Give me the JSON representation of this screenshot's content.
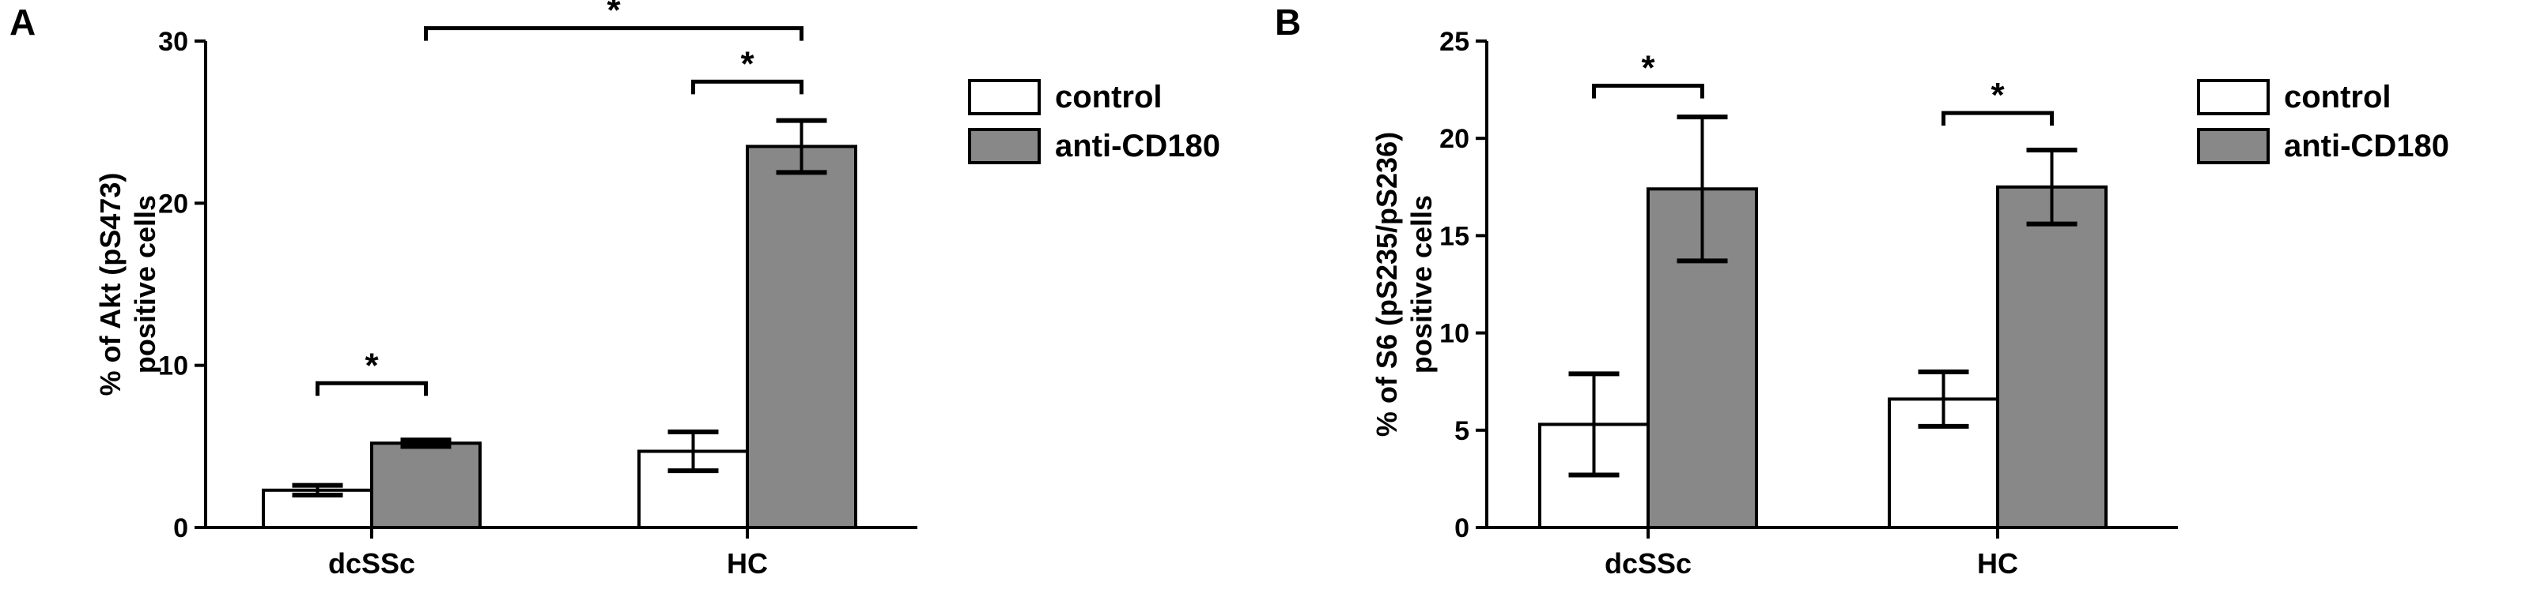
{
  "chart_data": [
    {
      "panel_label": "A",
      "type": "bar",
      "categories": [
        "dcSSc",
        "HC"
      ],
      "series": [
        {
          "name": "control",
          "values": [
            2.3,
            4.7
          ],
          "errors": [
            0.3,
            1.2
          ]
        },
        {
          "name": "anti-CD180",
          "values": [
            5.2,
            23.5
          ],
          "errors": [
            0.2,
            1.6
          ]
        }
      ],
      "ylabel": [
        "% of Akt (pS473)",
        "positive cells"
      ],
      "ylim": [
        0,
        30
      ],
      "yticks": [
        "0",
        "10",
        "20",
        "30"
      ],
      "legend_position": "top-right",
      "colors": {
        "control": "#ffffff",
        "anti-CD180": "#888888"
      },
      "significance": [
        {
          "category": 0,
          "from_series": 0,
          "to_series": 1,
          "level": 8.9,
          "label": "*"
        },
        {
          "category": 1,
          "from_series": 0,
          "to_series": 1,
          "level": 27.5,
          "label": "*"
        },
        {
          "from": [
            0,
            1
          ],
          "to": [
            1,
            1
          ],
          "level": 30.8,
          "label": "*"
        }
      ]
    },
    {
      "panel_label": "B",
      "type": "bar",
      "categories": [
        "dcSSc",
        "HC"
      ],
      "series": [
        {
          "name": "control",
          "values": [
            5.3,
            6.6
          ],
          "errors": [
            2.6,
            1.4
          ]
        },
        {
          "name": "anti-CD180",
          "values": [
            17.4,
            17.5
          ],
          "errors": [
            3.7,
            1.9
          ]
        }
      ],
      "ylabel": [
        "% of S6 (pS235/pS236)",
        "positive cells"
      ],
      "ylim": [
        0,
        25
      ],
      "yticks": [
        "0",
        "5",
        "10",
        "15",
        "20",
        "25"
      ],
      "legend_position": "top-right",
      "colors": {
        "control": "#ffffff",
        "anti-CD180": "#888888"
      },
      "significance": [
        {
          "category": 0,
          "from_series": 0,
          "to_series": 1,
          "level": 22.7,
          "label": "*"
        },
        {
          "category": 1,
          "from_series": 0,
          "to_series": 1,
          "level": 21.3,
          "label": "*"
        }
      ]
    }
  ]
}
